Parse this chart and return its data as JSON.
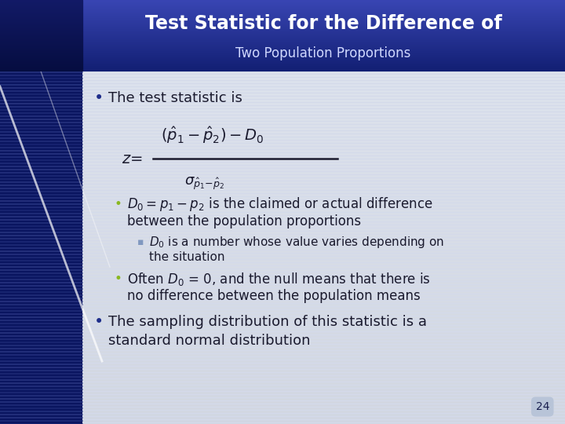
{
  "title_line1": "Test Statistic for the Difference of",
  "title_line2": "Two Population Proportions",
  "title_bg_dark": "#1a2878",
  "title_bg_mid": "#2a40a0",
  "title_text_color": "#ffffff",
  "title_line2_color": "#d0d8ff",
  "body_bg_top": "#c8cfe0",
  "body_bg_bottom": "#e8ecf4",
  "left_stripe_dark": "#0a1560",
  "left_stripe_mid": "#1530a0",
  "bullet_blue": "#1e2d8a",
  "bullet_green": "#8ab820",
  "text_color": "#1a1a2e",
  "page_number": "24",
  "formula_color": "#1a1a2e",
  "sub_bullet_dash": "#8098c0"
}
